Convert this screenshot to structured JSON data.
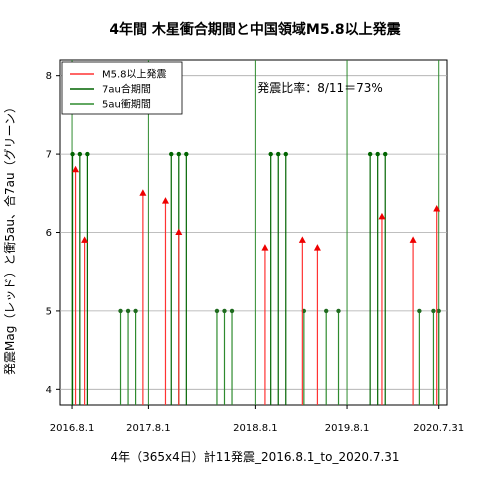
{
  "chart_data": {
    "type": "line",
    "title": "4年間 木星衝合期間と中国領域M5.8以上発震",
    "xlabel": "4年（365x4日）計11発震_2016.8.1_to_2020.7.31",
    "ylabel": "発震Mag（レッド）と衝5au、合7au（グリーン）",
    "annotation": "発震比率：8/11＝73%",
    "x_ticks": [
      "2016.8.1",
      "2017.8.1",
      "2018.8.1",
      "2019.8.1",
      "2020.7.31"
    ],
    "x_range": [
      "2016-06-14",
      "2020-09-02"
    ],
    "ylim": [
      3.8,
      8.2
    ],
    "y_ticks": [
      4,
      5,
      6,
      7,
      8
    ],
    "grid": true,
    "legend_position": "top-left",
    "legend": [
      {
        "name": "M5.8以上発震",
        "color": "#ff3333"
      },
      {
        "name": "7au合期間",
        "color": "#006400"
      },
      {
        "name": "5au衝期間",
        "color": "#2e8b2e"
      }
    ],
    "series": [
      {
        "name": "M5.8以上発震",
        "color": "#ff3333",
        "points": [
          {
            "date": "2016-08-15",
            "mag": 6.8
          },
          {
            "date": "2016-09-20",
            "mag": 5.9
          },
          {
            "date": "2017-05-10",
            "mag": 6.5
          },
          {
            "date": "2017-08-08",
            "mag": 6.4
          },
          {
            "date": "2017-09-30",
            "mag": 6.0
          },
          {
            "date": "2018-09-08",
            "mag": 5.8
          },
          {
            "date": "2019-02-04",
            "mag": 5.9
          },
          {
            "date": "2019-04-05",
            "mag": 5.8
          },
          {
            "date": "2019-12-18",
            "mag": 6.2
          },
          {
            "date": "2020-04-20",
            "mag": 5.9
          },
          {
            "date": "2020-07-23",
            "mag": 6.3
          }
        ]
      },
      {
        "name": "7au合期間",
        "color": "#006400",
        "points": [
          {
            "date": "2016-08-03",
            "value": 7
          },
          {
            "date": "2016-09-01",
            "value": 7
          },
          {
            "date": "2016-10-01",
            "value": 7
          },
          {
            "date": "2017-08-31",
            "value": 7
          },
          {
            "date": "2017-09-30",
            "value": 7
          },
          {
            "date": "2017-10-30",
            "value": 7
          },
          {
            "date": "2018-10-01",
            "value": 7
          },
          {
            "date": "2018-10-31",
            "value": 7
          },
          {
            "date": "2018-11-30",
            "value": 7
          },
          {
            "date": "2019-11-01",
            "value": 7
          },
          {
            "date": "2019-12-01",
            "value": 7
          },
          {
            "date": "2019-12-31",
            "value": 7
          }
        ]
      },
      {
        "name": "5au衝期間",
        "color": "#2e8b2e",
        "points": [
          {
            "date": "2017-02-10",
            "value": 5
          },
          {
            "date": "2017-03-12",
            "value": 5
          },
          {
            "date": "2017-04-11",
            "value": 5
          },
          {
            "date": "2018-03-01",
            "value": 5
          },
          {
            "date": "2018-03-31",
            "value": 5
          },
          {
            "date": "2018-04-30",
            "value": 5
          },
          {
            "date": "2019-02-10",
            "value": 5
          },
          {
            "date": "2019-05-10",
            "value": 5
          },
          {
            "date": "2019-06-28",
            "value": 5
          },
          {
            "date": "2020-05-15",
            "value": 5
          },
          {
            "date": "2020-07-10",
            "value": 5
          },
          {
            "date": "2020-07-31",
            "value": 5
          }
        ]
      }
    ],
    "reference_lines": [
      {
        "date": "2016-08-01",
        "color": "#2e8b2e"
      },
      {
        "date": "2017-06-01",
        "color": "#2e8b2e"
      },
      {
        "date": "2018-08-01",
        "color": "#2e8b2e"
      },
      {
        "date": "2019-08-01",
        "color": "#2e8b2e"
      },
      {
        "date": "2020-07-31",
        "color": "#2e8b2e"
      }
    ]
  }
}
